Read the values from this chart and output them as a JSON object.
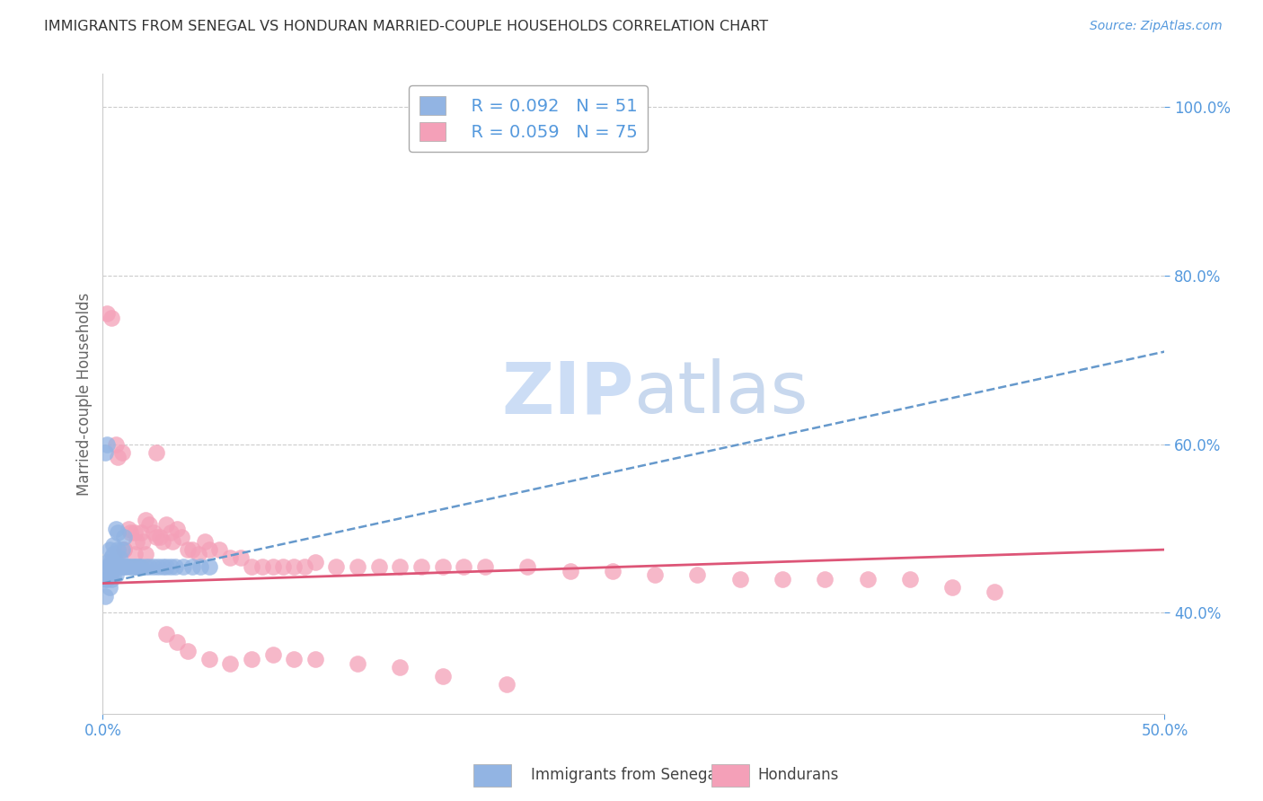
{
  "title": "IMMIGRANTS FROM SENEGAL VS HONDURAN MARRIED-COUPLE HOUSEHOLDS CORRELATION CHART",
  "source": "Source: ZipAtlas.com",
  "xlabel_blue": "Immigrants from Senegal",
  "xlabel_pink": "Hondurans",
  "ylabel": "Married-couple Households",
  "xmin": 0.0,
  "xmax": 0.5,
  "ymin": 0.28,
  "ymax": 1.04,
  "yticks": [
    0.4,
    0.6,
    0.8,
    1.0
  ],
  "xticks": [
    0.0,
    0.5
  ],
  "R_blue": 0.092,
  "N_blue": 51,
  "R_pink": 0.059,
  "N_pink": 75,
  "blue_color": "#92b4e3",
  "pink_color": "#f4a0b8",
  "trend_blue_color": "#6699cc",
  "trend_pink_color": "#dd5577",
  "title_color": "#333333",
  "axis_label_color": "#5599dd",
  "tick_color": "#5599dd",
  "grid_color": "#cccccc",
  "watermark_color": "#ccddf5",
  "blue_scatter_x": [
    0.001,
    0.001,
    0.002,
    0.002,
    0.002,
    0.003,
    0.003,
    0.003,
    0.003,
    0.004,
    0.004,
    0.004,
    0.004,
    0.005,
    0.005,
    0.005,
    0.005,
    0.006,
    0.006,
    0.006,
    0.007,
    0.007,
    0.007,
    0.008,
    0.008,
    0.009,
    0.009,
    0.01,
    0.01,
    0.011,
    0.012,
    0.013,
    0.014,
    0.015,
    0.016,
    0.017,
    0.018,
    0.02,
    0.022,
    0.024,
    0.026,
    0.028,
    0.03,
    0.032,
    0.034,
    0.038,
    0.042,
    0.046,
    0.05,
    0.002,
    0.001
  ],
  "blue_scatter_y": [
    0.44,
    0.42,
    0.455,
    0.46,
    0.44,
    0.475,
    0.455,
    0.445,
    0.43,
    0.465,
    0.46,
    0.455,
    0.44,
    0.48,
    0.47,
    0.455,
    0.445,
    0.5,
    0.46,
    0.445,
    0.495,
    0.475,
    0.455,
    0.465,
    0.455,
    0.475,
    0.455,
    0.49,
    0.455,
    0.455,
    0.455,
    0.455,
    0.455,
    0.455,
    0.455,
    0.455,
    0.455,
    0.455,
    0.455,
    0.455,
    0.455,
    0.455,
    0.455,
    0.455,
    0.455,
    0.455,
    0.455,
    0.455,
    0.455,
    0.6,
    0.59
  ],
  "pink_scatter_x": [
    0.002,
    0.004,
    0.006,
    0.007,
    0.009,
    0.01,
    0.012,
    0.013,
    0.015,
    0.016,
    0.018,
    0.019,
    0.02,
    0.022,
    0.024,
    0.025,
    0.027,
    0.028,
    0.03,
    0.032,
    0.033,
    0.035,
    0.037,
    0.04,
    0.042,
    0.045,
    0.048,
    0.05,
    0.055,
    0.06,
    0.065,
    0.07,
    0.075,
    0.08,
    0.085,
    0.09,
    0.095,
    0.1,
    0.11,
    0.12,
    0.13,
    0.14,
    0.15,
    0.16,
    0.17,
    0.18,
    0.2,
    0.22,
    0.24,
    0.26,
    0.28,
    0.3,
    0.32,
    0.34,
    0.36,
    0.38,
    0.4,
    0.42,
    0.01,
    0.015,
    0.02,
    0.025,
    0.03,
    0.035,
    0.04,
    0.05,
    0.06,
    0.07,
    0.08,
    0.09,
    0.1,
    0.12,
    0.14,
    0.16,
    0.19
  ],
  "pink_scatter_y": [
    0.755,
    0.75,
    0.6,
    0.585,
    0.59,
    0.475,
    0.5,
    0.495,
    0.495,
    0.485,
    0.495,
    0.485,
    0.51,
    0.505,
    0.495,
    0.49,
    0.49,
    0.485,
    0.505,
    0.495,
    0.485,
    0.5,
    0.49,
    0.475,
    0.475,
    0.47,
    0.485,
    0.475,
    0.475,
    0.465,
    0.465,
    0.455,
    0.455,
    0.455,
    0.455,
    0.455,
    0.455,
    0.46,
    0.455,
    0.455,
    0.455,
    0.455,
    0.455,
    0.455,
    0.455,
    0.455,
    0.455,
    0.45,
    0.45,
    0.445,
    0.445,
    0.44,
    0.44,
    0.44,
    0.44,
    0.44,
    0.43,
    0.425,
    0.475,
    0.47,
    0.47,
    0.59,
    0.375,
    0.365,
    0.355,
    0.345,
    0.34,
    0.345,
    0.35,
    0.345,
    0.345,
    0.34,
    0.335,
    0.325,
    0.315
  ],
  "blue_trend_x0": 0.0,
  "blue_trend_y0": 0.435,
  "blue_trend_x1": 0.5,
  "blue_trend_y1": 0.71,
  "pink_trend_x0": 0.0,
  "pink_trend_y0": 0.435,
  "pink_trend_x1": 0.5,
  "pink_trend_y1": 0.475
}
